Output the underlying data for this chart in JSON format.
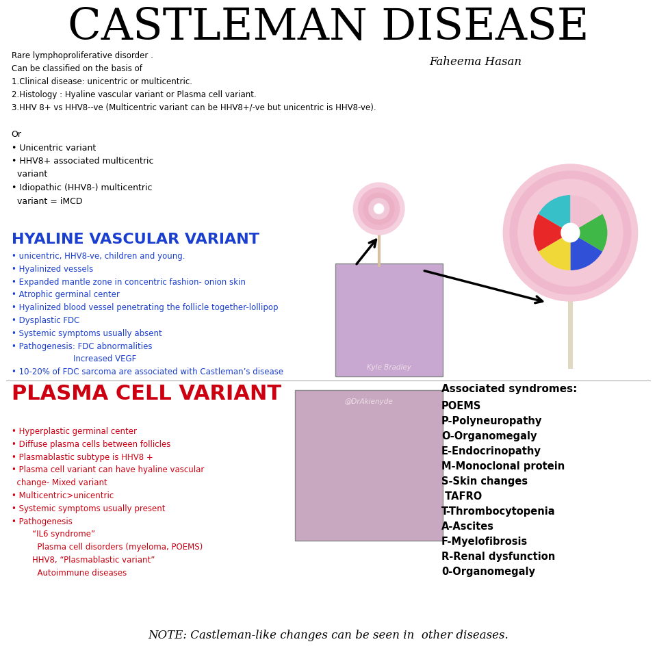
{
  "title": "CASTLEMAN DISEASE",
  "background_color": "#ffffff",
  "title_size": 46,
  "subtitle_text": "Rare lymphoproliferative disorder .\nCan be classified on the basis of\n1.Clinical disease: unicentric or multicentric.\n2.Histology : Hyaline vascular variant or Plasma cell variant.\n3.HHV 8+ vs HHV8--ve (Multicentric variant can be HHV8+/-ve but unicentric is HHV8-ve).",
  "author": "Faheema Hasan",
  "classification_text": "Or\n• Unicentric variant\n• HHV8+ associated multicentric\n  variant\n• Idiopathic (HHV8-) multicentric\n  variant = iMCD",
  "hyaline_title": "HYALINE VASCULAR VARIANT",
  "hyaline_color": "#1a3ecf",
  "hyaline_bullets": "• unicentric, HHV8-ve, children and young.\n• Hyalinized vessels\n• Expanded mantle zone in concentric fashion- onion skin\n• Atrophic germinal center\n• Hyalinized blood vessel penetrating the follicle together-lollipop\n• Dysplastic FDC\n• Systemic symptoms usually absent\n• Pathogenesis: FDC abnormalities\n                        Increased VEGF\n• 10-20% of FDC sarcoma are associated with Castleman’s disease",
  "plasma_title": "PLASMA CELL VARIANT",
  "plasma_color": "#cc0011",
  "plasma_bullets": "• Hyperplastic germinal center\n• Diffuse plasma cells between follicles\n• Plasmablastic subtype is HHV8 +\n• Plasma cell variant can have hyaline vascular\n  change- Mixed variant\n• Multicentric>unicentric\n• Systemic symptoms usually present\n• Pathogenesis\n        “IL6 syndrome”\n          Plasma cell disorders (myeloma, POEMS)\n        HHV8, “Plasmablastic variant”\n          Autoimmune diseases",
  "poems_title": "Associated syndromes:",
  "poems_lines": [
    "POEMS",
    "P-Polyneuropathy",
    "O-Organomegaly",
    "E-Endocrinopathy",
    "M-Monoclonal protein",
    "S-Skin changes",
    " TAFRO",
    "T-Thrombocytopenia",
    "A-Ascites",
    "F-Myelofibrosis",
    "R-Renal dysfunction",
    "0-Organomegaly"
  ],
  "note_text": "NOTE: Castleman-like changes can be seen in  other diseases.",
  "kyle_text": "Kyle Bradley",
  "dr_text": "@DrAkienyde",
  "hist1_color": "#c8a8d0",
  "hist2_color": "#c8a8c0",
  "lollipop1_colors": [
    "#f5d0de",
    "#f0b0c8",
    "#ebb0c0",
    "#e8a0b8",
    "#e090b0"
  ],
  "lollipop2_outer": "#f5c8d8",
  "lollipop2_rings": [
    "#e8b0c0",
    "#e0a0b0"
  ],
  "lollipop2_swirl": [
    "#40b040",
    "#4060e0",
    "#f0d040",
    "#e83030",
    "#40c8d0",
    "#ffffff"
  ],
  "stick1_color": "#d4c0a0",
  "stick2_color": "#e0d8c0"
}
